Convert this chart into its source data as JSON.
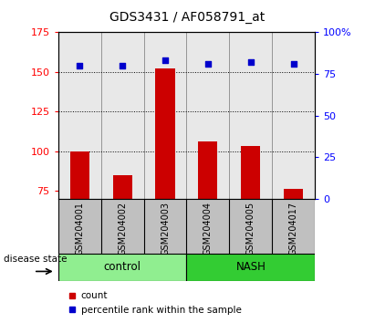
{
  "title": "GDS3431 / AF058791_at",
  "samples": [
    "GSM204001",
    "GSM204002",
    "GSM204003",
    "GSM204004",
    "GSM204005",
    "GSM204017"
  ],
  "count_values": [
    100,
    85,
    152,
    106,
    103,
    76
  ],
  "percentile_values": [
    80,
    80,
    83,
    81,
    82,
    81
  ],
  "groups": [
    {
      "label": "control",
      "indices": [
        0,
        1,
        2
      ],
      "color": "#90EE90"
    },
    {
      "label": "NASH",
      "indices": [
        3,
        4,
        5
      ],
      "color": "#33CC33"
    }
  ],
  "ylim_left": [
    70,
    175
  ],
  "ylim_right": [
    0,
    100
  ],
  "yticks_left": [
    75,
    100,
    125,
    150,
    175
  ],
  "yticks_right": [
    0,
    25,
    50,
    75,
    100
  ],
  "bar_color": "#CC0000",
  "dot_color": "#0000CC",
  "plot_bg": "#E8E8E8",
  "label_bg": "#C0C0C0",
  "control_color": "#90EE90",
  "nash_color": "#33CC33",
  "disease_state_label": "disease state",
  "legend_count": "count",
  "legend_percentile": "percentile rank within the sample",
  "grid_dotted_at": [
    100,
    125,
    150
  ]
}
